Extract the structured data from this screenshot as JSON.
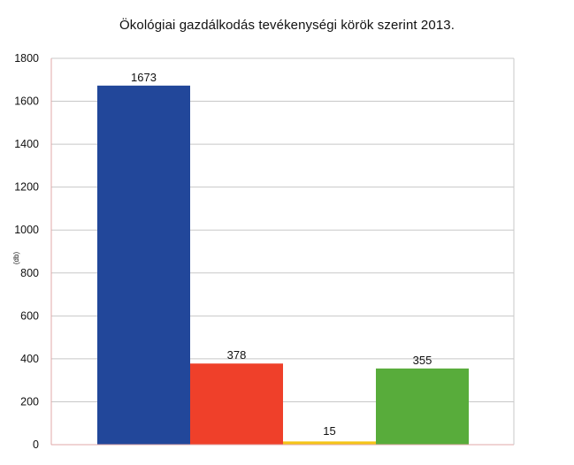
{
  "chart_data": {
    "type": "bar",
    "title": "Ökológiai gazdálkodás  tevékenységi körök szerint 2013.",
    "ylabel": "(db)",
    "xlabel": "",
    "ylim": [
      0,
      1800
    ],
    "yticks": [
      0,
      200,
      400,
      600,
      800,
      1000,
      1200,
      1400,
      1600,
      1800
    ],
    "grid": true,
    "legend": "none",
    "values": [
      1673,
      378,
      15,
      355
    ],
    "data_labels": [
      "1673",
      "378",
      "15",
      "355"
    ],
    "colors": [
      "#22479a",
      "#ef402a",
      "#f5c518",
      "#58ac3b"
    ],
    "gridline_color": "#c8c8c8",
    "axis_color": "#e0a8a8"
  }
}
